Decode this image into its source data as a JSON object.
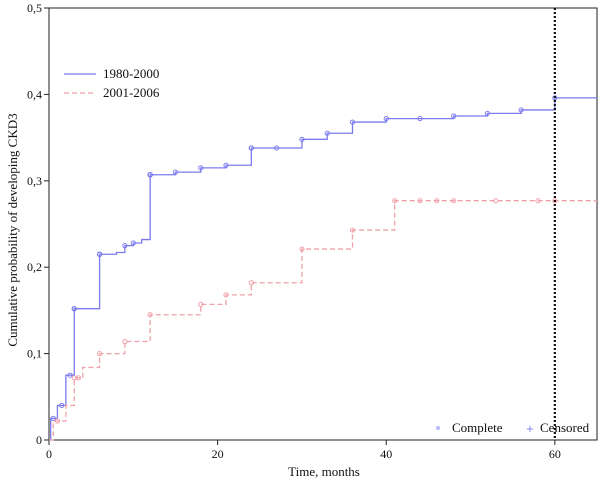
{
  "chart_data": {
    "type": "line",
    "title": "",
    "xlabel": "Time, months",
    "ylabel": "Cumulative probability of developing CKD3",
    "xlim": [
      0,
      65
    ],
    "ylim": [
      0,
      0.5
    ],
    "x_ticks": [
      0,
      20,
      40,
      60
    ],
    "x_tick_labels": [
      "0",
      "20",
      "40",
      "60"
    ],
    "y_ticks": [
      0,
      0.1,
      0.2,
      0.3,
      0.4,
      0.5
    ],
    "y_tick_labels": [
      "0",
      "0,1",
      "0,2",
      "0,3",
      "0,4",
      "0,5"
    ],
    "grid": false,
    "legend_placement": "top-left",
    "vertical_reference_line": 60,
    "marker_legend": {
      "complete_label": "Complete",
      "censored_label": "Censored",
      "placement": "bottom-right"
    },
    "series": [
      {
        "name": "1980-2000",
        "color": "#7b7bf0",
        "dash": "solid",
        "steps": [
          [
            0,
            0
          ],
          [
            0.2,
            0.025
          ],
          [
            1,
            0.04
          ],
          [
            2,
            0.075
          ],
          [
            3,
            0.152
          ],
          [
            6,
            0.215
          ],
          [
            8,
            0.217
          ],
          [
            9,
            0.225
          ],
          [
            10,
            0.228
          ],
          [
            11,
            0.232
          ],
          [
            12,
            0.307
          ],
          [
            15,
            0.31
          ],
          [
            18,
            0.315
          ],
          [
            21,
            0.318
          ],
          [
            24,
            0.338
          ],
          [
            30,
            0.348
          ],
          [
            33,
            0.355
          ],
          [
            36,
            0.368
          ],
          [
            40,
            0.372
          ],
          [
            48,
            0.375
          ],
          [
            52,
            0.378
          ],
          [
            56,
            0.382
          ],
          [
            60,
            0.396
          ],
          [
            65,
            0.396
          ]
        ],
        "censored_x": [
          0.5,
          1.5,
          2.5,
          3,
          3,
          3,
          6,
          6,
          6,
          9,
          10,
          12,
          12,
          12,
          12,
          15,
          18,
          21,
          24,
          24,
          27,
          30,
          33,
          36,
          40,
          44,
          48,
          52,
          56,
          60
        ]
      },
      {
        "name": "2001-2006",
        "color": "#f0a0a8",
        "dash": "dashed",
        "steps": [
          [
            0,
            0
          ],
          [
            0.5,
            0.022
          ],
          [
            2,
            0.04
          ],
          [
            3,
            0.072
          ],
          [
            4,
            0.084
          ],
          [
            6,
            0.1
          ],
          [
            9,
            0.114
          ],
          [
            12,
            0.145
          ],
          [
            18,
            0.157
          ],
          [
            21,
            0.168
          ],
          [
            24,
            0.182
          ],
          [
            30,
            0.221
          ],
          [
            36,
            0.243
          ],
          [
            41,
            0.277
          ],
          [
            65,
            0.277
          ]
        ],
        "censored_x": [
          1,
          3,
          3.5,
          6,
          9,
          12,
          18,
          21,
          24,
          30,
          36,
          41,
          44,
          46,
          48,
          53,
          58,
          60
        ]
      }
    ]
  }
}
